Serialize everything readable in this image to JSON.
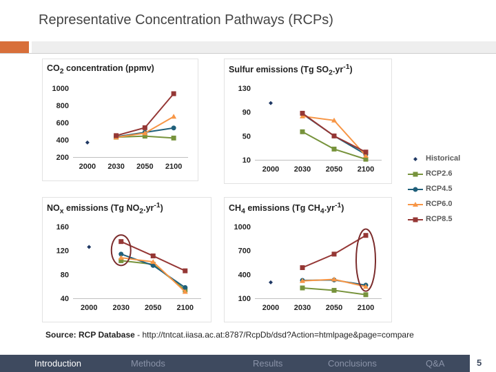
{
  "slide": {
    "title": "Representative Concentration Pathways (RCPs)",
    "source_label": "Source: RCP Database",
    "source_text": " - http://tntcat.iiasa.ac.at:8787/RcpDb/dsd?Action=htmlpage&page=compare",
    "page_number": "5",
    "accent_color": "#d86f3a"
  },
  "nav": {
    "items": [
      {
        "label": "Introduction",
        "active": true
      },
      {
        "label": "Methods",
        "active": false
      },
      {
        "label": "Results",
        "active": false
      },
      {
        "label": "Conclusions",
        "active": false
      },
      {
        "label": "Q&A",
        "active": false
      }
    ],
    "bar_color": "#3e4a5f"
  },
  "legend": [
    {
      "name": "Historical",
      "color": "#1f3864",
      "marker": "diamond"
    },
    {
      "name": "RCP2.6",
      "color": "#77933c",
      "marker": "x-square"
    },
    {
      "name": "RCP4.5",
      "color": "#1f5f7a",
      "marker": "circle"
    },
    {
      "name": "RCP6.0",
      "color": "#f79646",
      "marker": "triangle"
    },
    {
      "name": "RCP8.5",
      "color": "#953735",
      "marker": "square"
    }
  ],
  "chart_data": [
    {
      "type": "line",
      "title_html": "CO<sub>2</sub> concentration (ppmv)",
      "title_text": "CO2 concentration (ppmv)",
      "categories": [
        "2000",
        "2030",
        "2050",
        "2100"
      ],
      "ylim": [
        200,
        1000
      ],
      "yticks": [
        200,
        400,
        600,
        800,
        1000
      ],
      "series": [
        {
          "name": "Historical",
          "values": [
            369,
            null,
            null,
            null
          ]
        },
        {
          "name": "RCP2.6",
          "values": [
            null,
            431,
            443,
            421
          ]
        },
        {
          "name": "RCP4.5",
          "values": [
            null,
            435,
            487,
            538
          ]
        },
        {
          "name": "RCP6.0",
          "values": [
            null,
            429,
            478,
            670
          ]
        },
        {
          "name": "RCP8.5",
          "values": [
            null,
            449,
            541,
            936
          ]
        }
      ],
      "highlights": []
    },
    {
      "type": "line",
      "title_html": "Sulfur emissions (Tg SO<sub>2</sub>.yr<sup>-1</sup>)",
      "title_text": "Sulfur emissions (Tg SO2.yr-1)",
      "categories": [
        "2000",
        "2030",
        "2050",
        "2100"
      ],
      "ylim": [
        10,
        130
      ],
      "yticks": [
        10,
        50,
        90,
        130
      ],
      "series": [
        {
          "name": "Historical",
          "values": [
            105,
            null,
            null,
            null
          ]
        },
        {
          "name": "RCP2.6",
          "values": [
            null,
            57,
            28,
            11
          ]
        },
        {
          "name": "RCP4.5",
          "values": [
            null,
            87,
            50,
            19
          ]
        },
        {
          "name": "RCP6.0",
          "values": [
            null,
            83,
            76,
            17
          ]
        },
        {
          "name": "RCP8.5",
          "values": [
            null,
            88,
            50,
            23
          ]
        }
      ],
      "highlights": []
    },
    {
      "type": "line",
      "title_html": "NO<sub>x</sub> emissions (Tg NO<sub>2</sub>.yr<sup>-1</sup>)",
      "title_text": "NOx emissions (Tg NO2.yr-1)",
      "categories": [
        "2000",
        "2030",
        "2050",
        "2100"
      ],
      "ylim": [
        40,
        160
      ],
      "yticks": [
        40,
        80,
        120,
        160
      ],
      "series": [
        {
          "name": "Historical",
          "values": [
            126,
            null,
            null,
            null
          ]
        },
        {
          "name": "RCP2.6",
          "values": [
            null,
            103,
            97,
            54
          ]
        },
        {
          "name": "RCP4.5",
          "values": [
            null,
            114,
            95,
            58
          ]
        },
        {
          "name": "RCP6.0",
          "values": [
            null,
            108,
            101,
            51
          ]
        },
        {
          "name": "RCP8.5",
          "values": [
            null,
            135,
            111,
            86
          ]
        }
      ],
      "highlights": [
        {
          "category_index": 1,
          "ymin": 95,
          "ymax": 146
        }
      ]
    },
    {
      "type": "line",
      "title_html": "CH<sub>4</sub> emissions (Tg CH<sub>4</sub>.yr<sup>-1</sup>)",
      "title_text": "CH4 emissions (Tg CH4.yr-1)",
      "categories": [
        "2000",
        "2030",
        "2050",
        "2100"
      ],
      "ylim": [
        100,
        1000
      ],
      "yticks": [
        100,
        400,
        700,
        1000
      ],
      "series": [
        {
          "name": "Historical",
          "values": [
            300,
            null,
            null,
            null
          ]
        },
        {
          "name": "RCP2.6",
          "values": [
            null,
            230,
            200,
            145
          ]
        },
        {
          "name": "RCP4.5",
          "values": [
            null,
            325,
            330,
            265
          ]
        },
        {
          "name": "RCP6.0",
          "values": [
            null,
            318,
            338,
            246
          ]
        },
        {
          "name": "RCP8.5",
          "values": [
            null,
            485,
            655,
            890
          ]
        }
      ],
      "highlights": [
        {
          "category_index": 3,
          "ymin": 190,
          "ymax": 970
        }
      ]
    }
  ]
}
